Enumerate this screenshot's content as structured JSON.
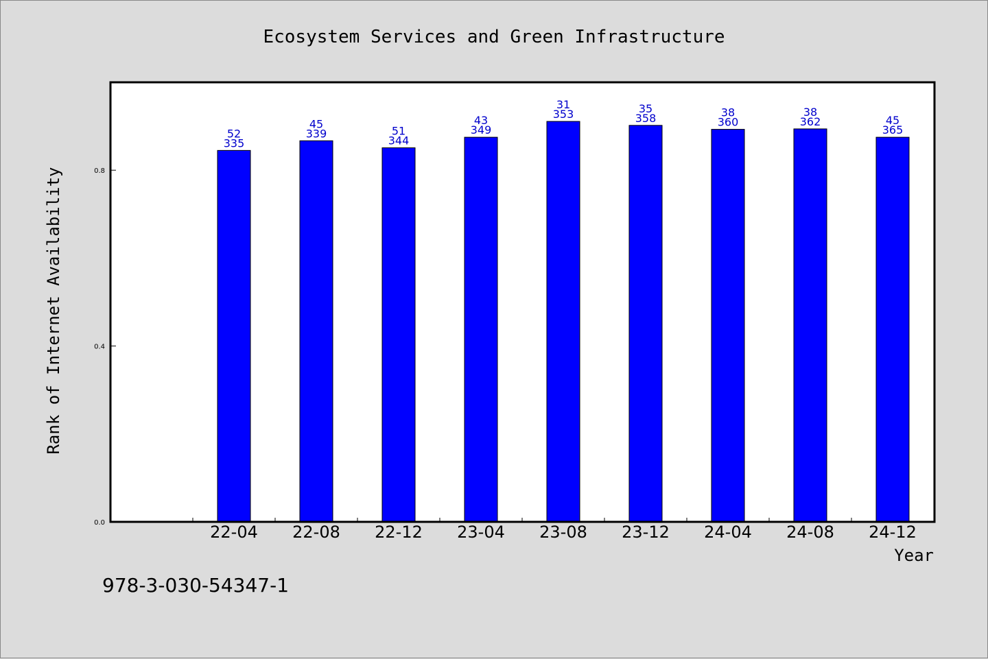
{
  "chart_data": {
    "type": "bar",
    "title": "Ecosystem Services and Green Infrastructure",
    "xlabel": "Year",
    "ylabel": "Rank of Internet Availability",
    "categories": [
      "22-04",
      "22-08",
      "22-12",
      "23-04",
      "23-08",
      "23-12",
      "24-04",
      "24-08",
      "24-12"
    ],
    "values": [
      0.845,
      0.867,
      0.851,
      0.875,
      0.911,
      0.902,
      0.893,
      0.894,
      0.875
    ],
    "rank_labels": [
      "52",
      "45",
      "51",
      "43",
      "31",
      "35",
      "38",
      "38",
      "45"
    ],
    "count_labels": [
      "335",
      "339",
      "344",
      "349",
      "353",
      "358",
      "360",
      "362",
      "365"
    ],
    "yticks": [
      "0.0",
      "0.4",
      "0.8"
    ],
    "ylim": [
      0,
      1.0
    ],
    "grid": false,
    "colors": {
      "bar": "#0000ff",
      "label": "#0000cc",
      "background": "#dcdcdc",
      "plot": "#ffffff"
    }
  },
  "footnote": "978-3-030-54347-1"
}
